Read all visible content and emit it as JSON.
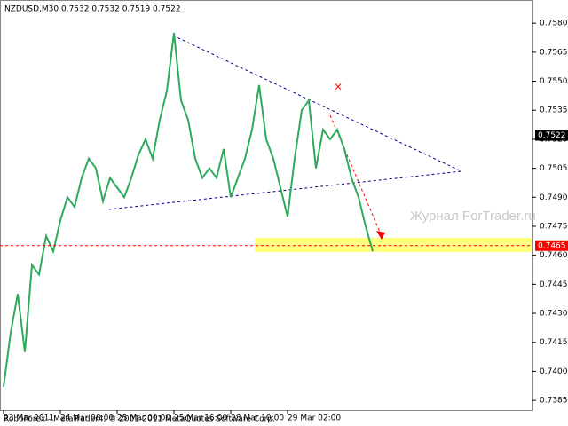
{
  "chart_data": {
    "type": "line",
    "title": "NZDUSD,M30  0.7532 0.7532 0.7519 0.7522",
    "watermark": "Журнал ForTrader.ru",
    "footer": "RoboForex - MetaTrader4, © 2001-2011 MetaQuotes Software Corp.",
    "categories": [
      "23 Mar 2011",
      null,
      null,
      null,
      null,
      null,
      null,
      null,
      "24 Mar 08:00",
      null,
      null,
      null,
      null,
      null,
      null,
      null,
      "25 Mar 00:00",
      null,
      null,
      null,
      null,
      null,
      null,
      null,
      "25 Mar 16:00",
      null,
      null,
      null,
      null,
      null,
      null,
      null,
      "28 Mar 10:00",
      null,
      null,
      null,
      null,
      null,
      null,
      null,
      "29 Mar 02:00",
      null,
      null,
      null,
      null,
      null,
      null,
      null,
      null,
      null,
      null,
      null,
      null
    ],
    "series": [
      {
        "name": "NZDUSD",
        "color": "#2eaa5c",
        "values": [
          0.7392,
          0.742,
          0.744,
          0.741,
          0.7455,
          0.745,
          0.747,
          0.7462,
          0.7478,
          0.749,
          0.7485,
          0.75,
          0.751,
          0.7505,
          0.7488,
          0.75,
          0.7495,
          0.749,
          0.75,
          0.7512,
          0.752,
          0.751,
          0.753,
          0.7545,
          0.7575,
          0.754,
          0.753,
          0.751,
          0.75,
          0.7505,
          0.75,
          0.7515,
          0.749,
          0.75,
          0.751,
          0.7525,
          0.7548,
          0.752,
          0.751,
          0.7495,
          0.748,
          0.751,
          0.7535,
          0.754,
          0.7505,
          0.7525,
          0.752,
          0.7525,
          0.7515,
          0.75,
          0.749,
          0.7475,
          0.7462
        ]
      }
    ],
    "levels": [
      {
        "value": 0.7522,
        "color": "#000000"
      },
      {
        "value": 0.7465,
        "color": "#ff0000"
      }
    ],
    "ylim": [
      0.738,
      0.7592
    ],
    "yticks": [
      {
        "value": 0.758,
        "label": "0.7580"
      },
      {
        "value": 0.7565,
        "label": "0.7565"
      },
      {
        "value": 0.755,
        "label": "0.7550"
      },
      {
        "value": 0.7535,
        "label": "0.7535"
      },
      {
        "value": 0.752,
        "label": "0.7520"
      },
      {
        "value": 0.7505,
        "label": "0.7505"
      },
      {
        "value": 0.749,
        "label": "0.7490"
      },
      {
        "value": 0.7475,
        "label": "0.7475"
      },
      {
        "value": 0.746,
        "label": "0.7460"
      },
      {
        "value": 0.7445,
        "label": "0.7445"
      },
      {
        "value": 0.743,
        "label": "0.7430"
      },
      {
        "value": 0.7415,
        "label": "0.7415"
      },
      {
        "value": 0.74,
        "label": "0.7400"
      },
      {
        "value": 0.7385,
        "label": "0.7385"
      }
    ]
  }
}
